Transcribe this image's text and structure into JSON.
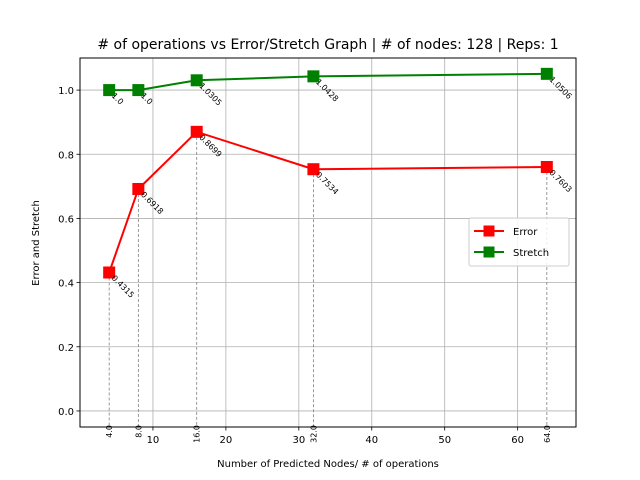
{
  "chart_data": {
    "type": "line",
    "title": "# of operations vs Error/Stretch Graph | # of nodes: 128 | Reps: 1",
    "xlabel": "Number of Predicted Nodes/ # of operations",
    "ylabel": "Error and Stretch",
    "xlim": [
      0,
      68
    ],
    "ylim": [
      -0.05,
      1.1
    ],
    "xticks": [
      10,
      20,
      30,
      40,
      50,
      60
    ],
    "yticks": [
      0.0,
      0.2,
      0.4,
      0.6,
      0.8,
      1.0
    ],
    "xtick_labels": [
      "10",
      "20",
      "30",
      "40",
      "50",
      "60"
    ],
    "ytick_labels": [
      "0.0",
      "0.2",
      "0.4",
      "0.6",
      "0.8",
      "1.0"
    ],
    "grid": true,
    "legend_position": "center-right",
    "x": [
      4,
      8,
      16,
      32,
      64
    ],
    "point_tick_labels": [
      "4.0",
      "8.0",
      "16.0",
      "32.0",
      "64.0"
    ],
    "series": [
      {
        "name": "Error",
        "color": "#ff0000",
        "marker": "square",
        "values": [
          0.4315,
          0.6918,
          0.8699,
          0.7534,
          0.7603
        ],
        "labels": [
          "0.4315",
          "0.6918",
          "0.8699",
          "0.7534",
          "0.7603"
        ]
      },
      {
        "name": "Stretch",
        "color": "#008000",
        "marker": "square",
        "values": [
          1.0,
          1.0,
          1.0305,
          1.0428,
          1.0506
        ],
        "labels": [
          "1.0",
          "1.0",
          "1.0305",
          "1.0428",
          "1.0506"
        ]
      }
    ]
  }
}
